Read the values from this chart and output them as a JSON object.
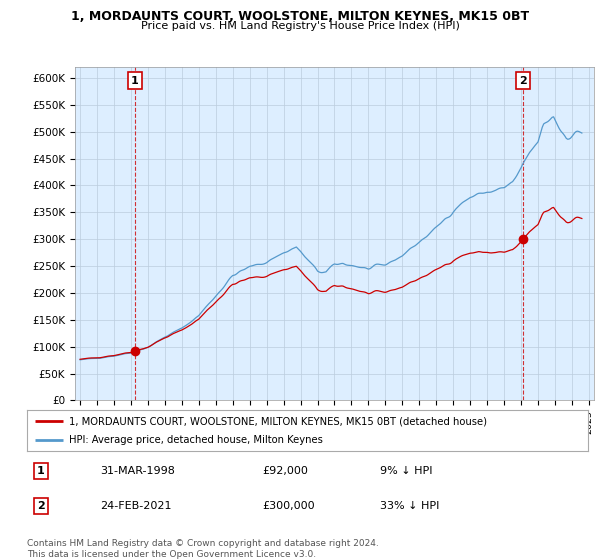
{
  "title": "1, MORDAUNTS COURT, WOOLSTONE, MILTON KEYNES, MK15 0BT",
  "subtitle": "Price paid vs. HM Land Registry's House Price Index (HPI)",
  "ylabel_ticks": [
    "£0",
    "£50K",
    "£100K",
    "£150K",
    "£200K",
    "£250K",
    "£300K",
    "£350K",
    "£400K",
    "£450K",
    "£500K",
    "£550K",
    "£600K"
  ],
  "ytick_values": [
    0,
    50000,
    100000,
    150000,
    200000,
    250000,
    300000,
    350000,
    400000,
    450000,
    500000,
    550000,
    600000
  ],
  "ylim": [
    0,
    620000
  ],
  "xlim_start": 1994.7,
  "xlim_end": 2025.3,
  "hpi_color": "#5599cc",
  "price_color": "#cc0000",
  "plot_bg_color": "#ddeeff",
  "sale1_date": 1998.24,
  "sale1_price": 92000,
  "sale1_label": "1",
  "sale2_date": 2021.12,
  "sale2_price": 300000,
  "sale2_label": "2",
  "legend_line1": "1, MORDAUNTS COURT, WOOLSTONE, MILTON KEYNES, MK15 0BT (detached house)",
  "legend_line2": "HPI: Average price, detached house, Milton Keynes",
  "table_row1_num": "1",
  "table_row1_date": "31-MAR-1998",
  "table_row1_price": "£92,000",
  "table_row1_hpi": "9% ↓ HPI",
  "table_row2_num": "2",
  "table_row2_date": "24-FEB-2021",
  "table_row2_price": "£300,000",
  "table_row2_hpi": "33% ↓ HPI",
  "footer": "Contains HM Land Registry data © Crown copyright and database right 2024.\nThis data is licensed under the Open Government Licence v3.0.",
  "background_color": "#ffffff",
  "grid_color": "#bbccdd"
}
